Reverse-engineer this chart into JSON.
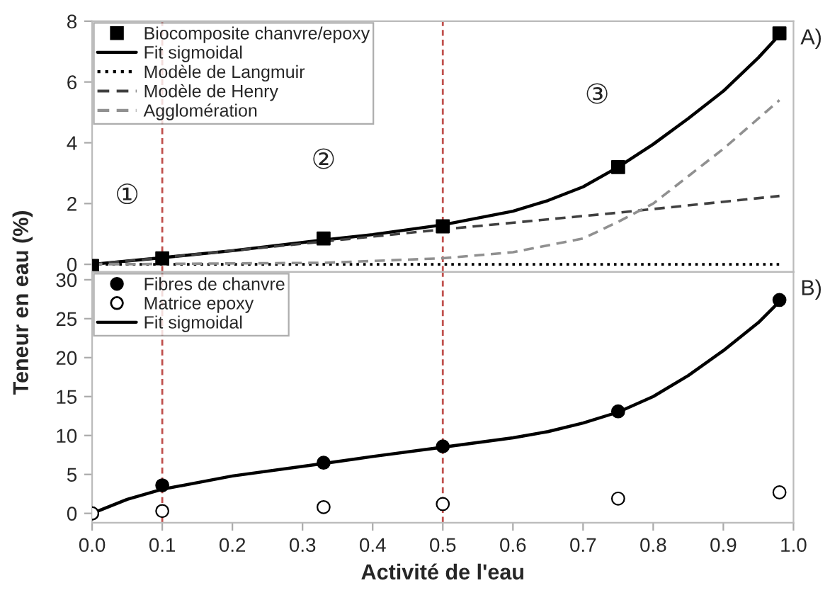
{
  "chart_data": [
    {
      "type": "line",
      "ylabel": "Teneur en eau (%)",
      "xlim": [
        0,
        1.0
      ],
      "ylim": [
        -0.25,
        8
      ],
      "yticks": [
        0,
        2,
        4,
        6,
        8
      ],
      "tick_labels": "y",
      "grid": false,
      "legend": "top left",
      "annotations": [
        "①",
        "②",
        "③",
        "A)"
      ],
      "ref_lines": [
        {
          "axis": "x",
          "value": 0.1,
          "color": "#c0504d",
          "line_style": "dashed"
        },
        {
          "axis": "x",
          "value": 0.5,
          "color": "#c0504d",
          "line_style": "dashed"
        }
      ],
      "series": [
        {
          "name": "Biocomposite chanvre/epoxy",
          "type": "scatter",
          "marker": "square",
          "color": "#000000",
          "x": [
            0,
            0.1,
            0.33,
            0.5,
            0.75,
            0.98
          ],
          "values": [
            -0.05,
            0.2,
            0.85,
            1.25,
            3.2,
            7.6
          ]
        },
        {
          "name": "Fit sigmoidal",
          "line_style": "solid",
          "color": "#000000",
          "x": [
            0,
            0.1,
            0.2,
            0.33,
            0.4,
            0.5,
            0.6,
            0.65,
            0.7,
            0.75,
            0.8,
            0.85,
            0.9,
            0.95,
            0.98
          ],
          "values": [
            0,
            0.22,
            0.45,
            0.8,
            0.98,
            1.3,
            1.75,
            2.1,
            2.55,
            3.2,
            3.95,
            4.8,
            5.7,
            6.8,
            7.55
          ]
        },
        {
          "name": "Modèle de Langmuir",
          "line_style": "dotted",
          "color": "#000000",
          "x": [
            0,
            0.98
          ],
          "values": [
            0,
            0
          ]
        },
        {
          "name": "Modèle de Henry",
          "line_style": "dashed",
          "color": "#404040",
          "x": [
            0,
            0.1,
            0.33,
            0.5,
            0.75,
            0.98
          ],
          "values": [
            0,
            0.22,
            0.75,
            1.15,
            1.7,
            2.25
          ]
        },
        {
          "name": "Agglomération",
          "line_style": "dashed",
          "color": "#909090",
          "x": [
            0,
            0.33,
            0.5,
            0.6,
            0.7,
            0.75,
            0.8,
            0.85,
            0.9,
            0.95,
            0.98
          ],
          "values": [
            0,
            0.05,
            0.2,
            0.4,
            0.85,
            1.4,
            2.0,
            2.9,
            3.8,
            4.8,
            5.4
          ]
        }
      ]
    },
    {
      "type": "line",
      "xlabel": "Activité de l'eau",
      "xlim": [
        0,
        1.0
      ],
      "xticks": [
        {
          "value": 0,
          "label": "0.0"
        },
        0.1,
        0.2,
        0.3,
        0.4,
        0.5,
        0.6,
        0.7,
        0.8,
        0.9,
        {
          "value": 1.0,
          "label": "1.0"
        }
      ],
      "ylim": [
        -1.2,
        31
      ],
      "yticks": [
        0,
        5,
        10,
        15,
        20,
        25,
        30
      ],
      "grid": false,
      "legend": "top left",
      "annotations": [
        "B)"
      ],
      "ref_lines": [
        {
          "axis": "x",
          "value": 0.1,
          "color": "#c0504d",
          "line_style": "dashed"
        },
        {
          "axis": "x",
          "value": 0.5,
          "color": "#c0504d",
          "line_style": "dashed"
        }
      ],
      "series": [
        {
          "name": "Fibres de chanvre",
          "type": "scatter",
          "marker": "circle",
          "color": "#000000",
          "x": [
            0,
            0.1,
            0.33,
            0.5,
            0.75,
            0.98
          ],
          "values": [
            0,
            3.6,
            6.5,
            8.6,
            13.1,
            27.4
          ]
        },
        {
          "name": "Matrice epoxy",
          "type": "scatter",
          "marker": "circle",
          "color": "#000000",
          "x": [
            0,
            0.1,
            0.33,
            0.5,
            0.75,
            0.98
          ],
          "values": [
            0,
            0.3,
            0.8,
            1.2,
            1.9,
            2.7
          ]
        },
        {
          "name": "Fit sigmoidal",
          "line_style": "solid",
          "color": "#000000",
          "x": [
            0,
            0.05,
            0.1,
            0.2,
            0.33,
            0.4,
            0.5,
            0.6,
            0.65,
            0.7,
            0.75,
            0.8,
            0.85,
            0.9,
            0.95,
            0.98
          ],
          "values": [
            0,
            1.8,
            3.1,
            4.8,
            6.4,
            7.3,
            8.5,
            9.7,
            10.5,
            11.6,
            13.0,
            15.0,
            17.7,
            20.9,
            24.5,
            27.2
          ]
        }
      ]
    }
  ]
}
